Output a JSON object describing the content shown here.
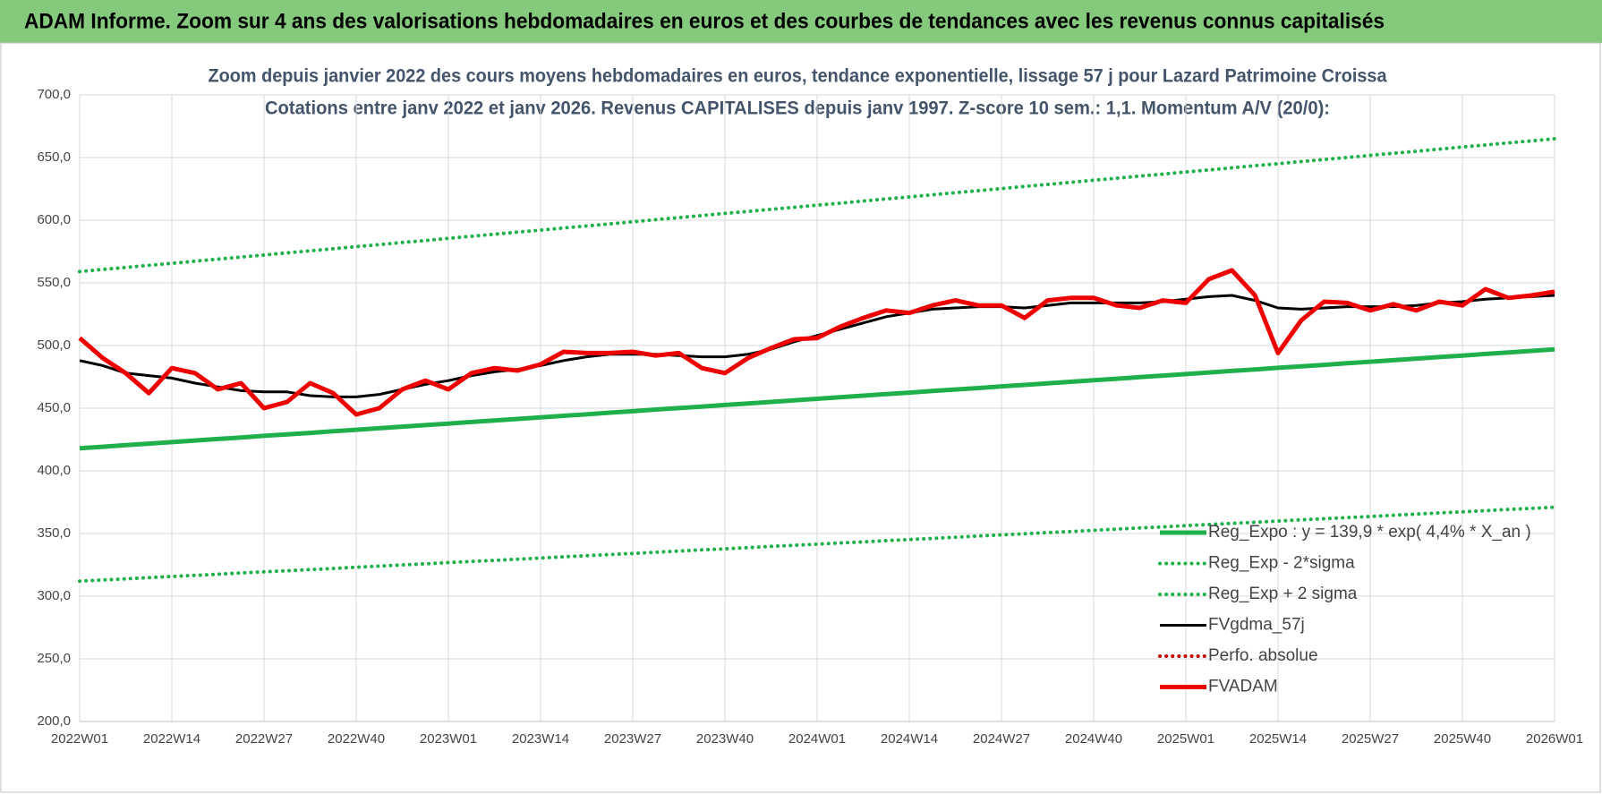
{
  "chart_data": {
    "type": "line",
    "header": "ADAM Informe. Zoom sur 4 ans des valorisations hebdomadaires en euros et des courbes de tendances avec les revenus connus capitalisés",
    "title": "Zoom depuis janvier 2022 des cours moyens hebdomadaires en euros, tendance exponentielle, lissage 57 j pour Lazard Patrimoine Croissa",
    "subtitle": "Cotations entre janv 2022 et janv 2026. Revenus CAPITALISES depuis janv 1997. Z-score 10 sem.: 1,1. Momentum A/V (20/0):",
    "categories": [
      "2022W01",
      null,
      null,
      null,
      "2022W14",
      null,
      null,
      null,
      "2022W27",
      null,
      null,
      null,
      "2022W40",
      null,
      null,
      null,
      "2023W01",
      null,
      null,
      null,
      "2023W14",
      null,
      null,
      null,
      "2023W27",
      null,
      null,
      null,
      "2023W40",
      null,
      null,
      null,
      "2024W01",
      null,
      null,
      null,
      "2024W14",
      null,
      null,
      null,
      "2024W27",
      null,
      null,
      null,
      "2024W40",
      null,
      null,
      null,
      "2025W01",
      null,
      null,
      null,
      "2025W14",
      null,
      null,
      null,
      "2025W27",
      null,
      null,
      null,
      "2025W40",
      null,
      null,
      null,
      "2026W01"
    ],
    "ylim": [
      200,
      700
    ],
    "yticks": [
      {
        "value": 200,
        "label": "200,0"
      },
      {
        "value": 250,
        "label": "250,0"
      },
      {
        "value": 300,
        "label": "300,0"
      },
      {
        "value": 350,
        "label": "350,0"
      },
      {
        "value": 400,
        "label": "400,0"
      },
      {
        "value": 450,
        "label": "450,0"
      },
      {
        "value": 500,
        "label": "500,0"
      },
      {
        "value": 550,
        "label": "550,0"
      },
      {
        "value": 600,
        "label": "600,0"
      },
      {
        "value": 650,
        "label": "650,0"
      },
      {
        "value": 700,
        "label": "700,0"
      }
    ],
    "grid": true,
    "legend": "lower right",
    "series": [
      {
        "name": "Reg_Expo : y = 139,9 * exp( 4,4% *  X_an )",
        "color": "#1fb04b",
        "style": "solid",
        "values": [
          418.0,
          419.2,
          420.5,
          421.7,
          422.9,
          424.2,
          425.4,
          426.6,
          427.9,
          429.1,
          430.3,
          431.6,
          432.8,
          434.0,
          435.3,
          436.5,
          437.7,
          439.0,
          440.2,
          441.4,
          442.7,
          443.9,
          445.1,
          446.4,
          447.6,
          448.9,
          450.1,
          451.3,
          452.6,
          453.8,
          455.0,
          456.3,
          457.5,
          458.7,
          460.0,
          461.2,
          462.4,
          463.7,
          464.9,
          466.1,
          467.4,
          468.6,
          469.8,
          471.1,
          472.3,
          473.5,
          474.8,
          476.0,
          477.2,
          478.5,
          479.7,
          480.9,
          482.2,
          483.4,
          484.6,
          485.9,
          487.1,
          488.3,
          489.6,
          490.8,
          492.0,
          493.3,
          494.5,
          495.7,
          497.0
        ]
      },
      {
        "name": "Reg_Exp - 2*sigma",
        "color": "#1fb04b",
        "style": "dotted",
        "values": [
          312.0,
          312.9,
          313.8,
          314.8,
          315.7,
          316.6,
          317.5,
          318.5,
          319.4,
          320.3,
          321.2,
          322.1,
          323.1,
          324.0,
          324.9,
          325.8,
          326.8,
          327.7,
          328.6,
          329.5,
          330.4,
          331.4,
          332.3,
          333.2,
          334.1,
          335.1,
          336.0,
          336.9,
          337.8,
          338.7,
          339.7,
          340.6,
          341.5,
          342.4,
          343.3,
          344.3,
          345.2,
          346.1,
          347.0,
          348.0,
          348.9,
          349.8,
          350.7,
          351.6,
          352.6,
          353.5,
          354.4,
          355.3,
          356.3,
          357.2,
          358.1,
          359.0,
          359.9,
          360.9,
          361.8,
          362.7,
          363.6,
          364.6,
          365.5,
          366.4,
          367.3,
          368.2,
          369.2,
          370.1,
          371.0
        ]
      },
      {
        "name": "Reg_Exp + 2 sigma",
        "color": "#1fb04b",
        "style": "dotted",
        "values": [
          559.0,
          560.7,
          562.3,
          564.0,
          565.6,
          567.3,
          568.9,
          570.6,
          572.2,
          573.9,
          575.6,
          577.2,
          578.9,
          580.5,
          582.2,
          583.8,
          585.5,
          587.2,
          588.8,
          590.5,
          592.1,
          593.8,
          595.4,
          597.1,
          598.7,
          600.4,
          602.1,
          603.7,
          605.4,
          607.0,
          608.7,
          610.3,
          612.0,
          613.6,
          615.3,
          617.0,
          618.6,
          620.3,
          621.9,
          623.6,
          625.2,
          626.9,
          628.6,
          630.2,
          631.9,
          633.5,
          635.2,
          636.8,
          638.5,
          640.1,
          641.8,
          643.5,
          645.1,
          646.8,
          648.4,
          650.1,
          651.7,
          653.4,
          655.0,
          656.7,
          658.4,
          660.0,
          661.7,
          663.3,
          665.0
        ]
      },
      {
        "name": "FVgdma_57j",
        "color": "#000000",
        "style": "solid",
        "values": [
          488,
          484,
          478,
          476,
          474,
          470,
          467,
          464,
          463,
          463,
          460,
          459,
          459,
          461,
          465,
          469,
          472,
          476,
          479,
          481,
          484,
          488,
          491,
          493,
          493,
          493,
          492,
          491,
          491,
          493,
          497,
          503,
          508,
          513,
          518,
          523,
          526,
          529,
          530,
          531,
          531,
          530,
          532,
          534,
          534,
          534,
          534,
          535,
          537,
          539,
          540,
          536,
          530,
          529,
          530,
          531,
          531,
          531,
          532,
          534,
          535,
          537,
          538,
          539,
          540
        ]
      },
      {
        "name": "Perfo. absolue",
        "color": "#c00000",
        "style": "dotted",
        "values": [
          null,
          null,
          null,
          null,
          null,
          null,
          null,
          null,
          null,
          null,
          null,
          null,
          null,
          null,
          null,
          null,
          null,
          null,
          null,
          null,
          null,
          null,
          null,
          null,
          null,
          null,
          null,
          null,
          null,
          null,
          null,
          null,
          null,
          null,
          null,
          null,
          null,
          null,
          null,
          null,
          null,
          null,
          null,
          null,
          null,
          null,
          null,
          null,
          null,
          null,
          null,
          null,
          null,
          null,
          null,
          null,
          null,
          null,
          null,
          null,
          null,
          null,
          null,
          null,
          null
        ]
      },
      {
        "name": "FVADAM",
        "color": "#ee0000",
        "style": "solid",
        "values": [
          506,
          490,
          478,
          462,
          482,
          478,
          465,
          470,
          450,
          455,
          470,
          462,
          445,
          450,
          465,
          472,
          465,
          478,
          482,
          480,
          485,
          495,
          494,
          494,
          495,
          492,
          494,
          482,
          478,
          490,
          498,
          505,
          506,
          515,
          522,
          528,
          526,
          532,
          536,
          532,
          532,
          522,
          536,
          538,
          538,
          532,
          530,
          536,
          534,
          553,
          560,
          540,
          494,
          520,
          535,
          534,
          528,
          533,
          528,
          535,
          532,
          545,
          538,
          540,
          543
        ]
      }
    ]
  }
}
